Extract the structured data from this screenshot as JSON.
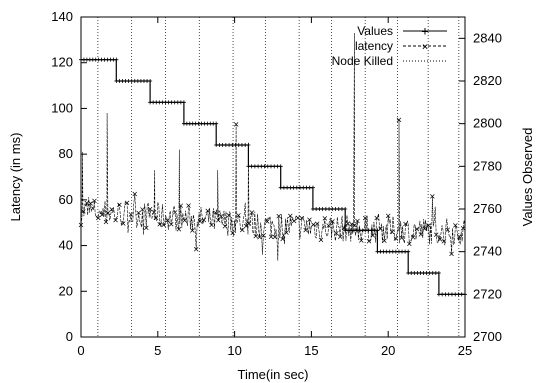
{
  "chart_data": {
    "type": "line",
    "xlabel": "Time(in sec)",
    "ylabel": "Latency (in ms)",
    "y2label": "Values Observed",
    "xlim": [
      0,
      25
    ],
    "ylim": [
      0,
      140
    ],
    "y2lim": [
      2700,
      2850
    ],
    "xticks": [
      0,
      5,
      10,
      15,
      20,
      25
    ],
    "yticks": [
      0,
      20,
      40,
      60,
      80,
      100,
      120,
      140
    ],
    "y2ticks": [
      2700,
      2720,
      2740,
      2760,
      2780,
      2800,
      2820,
      2840
    ],
    "legend_position": "top-right",
    "grid": false,
    "series": [
      {
        "name": "Values",
        "axis": "right",
        "style": "step",
        "steps": [
          {
            "x0": 0.0,
            "x1": 2.3,
            "value": 2830
          },
          {
            "x0": 2.3,
            "x1": 4.5,
            "value": 2820
          },
          {
            "x0": 4.5,
            "x1": 6.7,
            "value": 2810
          },
          {
            "x0": 6.7,
            "x1": 8.8,
            "value": 2800
          },
          {
            "x0": 8.8,
            "x1": 10.9,
            "value": 2790
          },
          {
            "x0": 10.9,
            "x1": 13.0,
            "value": 2780
          },
          {
            "x0": 13.0,
            "x1": 15.1,
            "value": 2770
          },
          {
            "x0": 15.1,
            "x1": 17.2,
            "value": 2760
          },
          {
            "x0": 17.2,
            "x1": 19.3,
            "value": 2750
          },
          {
            "x0": 19.3,
            "x1": 21.3,
            "value": 2740
          },
          {
            "x0": 21.3,
            "x1": 23.3,
            "value": 2730
          },
          {
            "x0": 23.3,
            "x1": 25.0,
            "value": 2720
          }
        ]
      },
      {
        "name": "latency",
        "axis": "left",
        "style": "dashed-markers",
        "baseline": [
          [
            0,
            55
          ],
          [
            5,
            53
          ],
          [
            10,
            50
          ],
          [
            15,
            48
          ],
          [
            20,
            47
          ],
          [
            25,
            46
          ]
        ],
        "spikes": [
          {
            "x": 0.1,
            "y": 81
          },
          {
            "x": 1.7,
            "y": 98
          },
          {
            "x": 4.8,
            "y": 73
          },
          {
            "x": 6.4,
            "y": 82
          },
          {
            "x": 8.9,
            "y": 73
          },
          {
            "x": 10.1,
            "y": 93
          },
          {
            "x": 10.9,
            "y": 85
          },
          {
            "x": 17.8,
            "y": 133
          },
          {
            "x": 20.7,
            "y": 95
          }
        ]
      },
      {
        "name": "Node Killed",
        "style": "vertical-dotted",
        "x": [
          1.1,
          3.3,
          5.5,
          7.7,
          9.9,
          12.0,
          14.2,
          16.3,
          18.5,
          20.6,
          22.6,
          24.6
        ]
      }
    ]
  }
}
